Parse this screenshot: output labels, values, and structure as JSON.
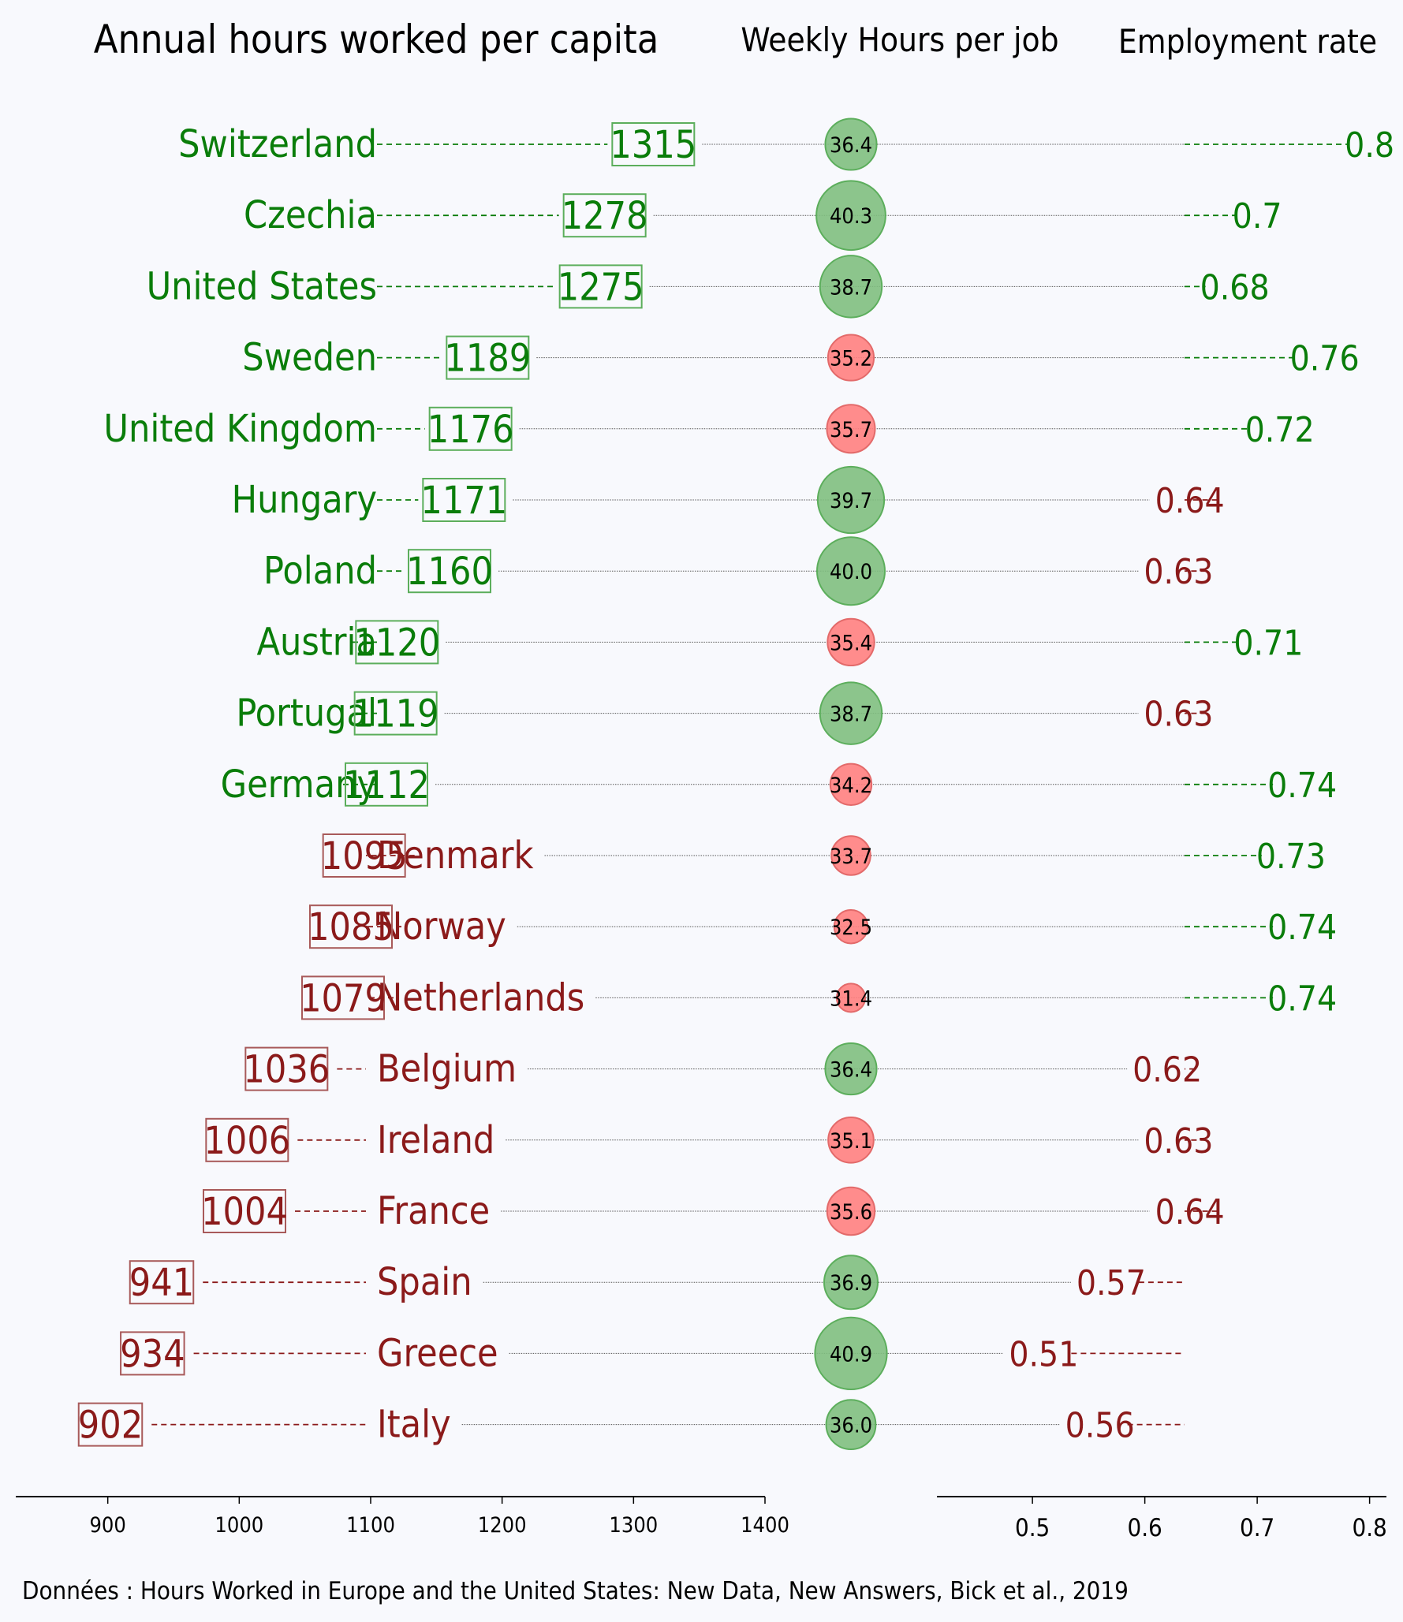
{
  "chart_data": {
    "type": "table",
    "title": "Annual hours worked per capita",
    "weekly_title": "Weekly Hours per job",
    "employment_title": "Employment rate",
    "source": "Données : Hours Worked in Europe and the United States: New Data, New Answers, Bick et al., 2019",
    "hours_threshold": 1100,
    "weekly_threshold": 36.0,
    "employment_threshold": 0.67,
    "x_left_ticks": [
      "900",
      "1000",
      "1100",
      "1200",
      "1300",
      "1400"
    ],
    "x_left_range": [
      830,
      1400
    ],
    "x_right_ticks": [
      "0.5",
      "0.6",
      "0.7",
      "0.8"
    ],
    "x_right_range": [
      0.415,
      0.815
    ],
    "colors": {
      "above": "#0a7d0a",
      "below": "#8b1a1a",
      "green_fill": "#7fbf7f",
      "red_fill": "#ff7f7f",
      "background": "#f8f9fd"
    },
    "rows": [
      {
        "country": "Switzerland",
        "hours": 1315,
        "hours_label": "1315",
        "weekly": 36.4,
        "weekly_label": "36.4",
        "employment": 0.8,
        "employment_label": "0.8"
      },
      {
        "country": "Czechia",
        "hours": 1278,
        "hours_label": "1278",
        "weekly": 40.3,
        "weekly_label": "40.3",
        "employment": 0.7,
        "employment_label": "0.7"
      },
      {
        "country": "United States",
        "hours": 1275,
        "hours_label": "1275",
        "weekly": 38.7,
        "weekly_label": "38.7",
        "employment": 0.68,
        "employment_label": "0.68"
      },
      {
        "country": "Sweden",
        "hours": 1189,
        "hours_label": "1189",
        "weekly": 35.2,
        "weekly_label": "35.2",
        "employment": 0.76,
        "employment_label": "0.76"
      },
      {
        "country": "United Kingdom",
        "hours": 1176,
        "hours_label": "1176",
        "weekly": 35.7,
        "weekly_label": "35.7",
        "employment": 0.72,
        "employment_label": "0.72"
      },
      {
        "country": "Hungary",
        "hours": 1171,
        "hours_label": "1171",
        "weekly": 39.7,
        "weekly_label": "39.7",
        "employment": 0.64,
        "employment_label": "0.64"
      },
      {
        "country": "Poland",
        "hours": 1160,
        "hours_label": "1160",
        "weekly": 40.0,
        "weekly_label": "40.0",
        "employment": 0.63,
        "employment_label": "0.63"
      },
      {
        "country": "Austria",
        "hours": 1120,
        "hours_label": "1120",
        "weekly": 35.4,
        "weekly_label": "35.4",
        "employment": 0.71,
        "employment_label": "0.71"
      },
      {
        "country": "Portugal",
        "hours": 1119,
        "hours_label": "1119",
        "weekly": 38.7,
        "weekly_label": "38.7",
        "employment": 0.63,
        "employment_label": "0.63"
      },
      {
        "country": "Germany",
        "hours": 1112,
        "hours_label": "1112",
        "weekly": 34.2,
        "weekly_label": "34.2",
        "employment": 0.74,
        "employment_label": "0.74"
      },
      {
        "country": "Denmark",
        "hours": 1095,
        "hours_label": "1095",
        "weekly": 33.7,
        "weekly_label": "33.7",
        "employment": 0.73,
        "employment_label": "0.73"
      },
      {
        "country": "Norway",
        "hours": 1085,
        "hours_label": "1085",
        "weekly": 32.5,
        "weekly_label": "32.5",
        "employment": 0.74,
        "employment_label": "0.74"
      },
      {
        "country": "Netherlands",
        "hours": 1079,
        "hours_label": "1079",
        "weekly": 31.4,
        "weekly_label": "31.4",
        "employment": 0.74,
        "employment_label": "0.74"
      },
      {
        "country": "Belgium",
        "hours": 1036,
        "hours_label": "1036",
        "weekly": 36.4,
        "weekly_label": "36.4",
        "employment": 0.62,
        "employment_label": "0.62"
      },
      {
        "country": "Ireland",
        "hours": 1006,
        "hours_label": "1006",
        "weekly": 35.1,
        "weekly_label": "35.1",
        "employment": 0.63,
        "employment_label": "0.63"
      },
      {
        "country": "France",
        "hours": 1004,
        "hours_label": "1004",
        "weekly": 35.6,
        "weekly_label": "35.6",
        "employment": 0.64,
        "employment_label": "0.64"
      },
      {
        "country": "Spain",
        "hours": 941,
        "hours_label": "941",
        "weekly": 36.9,
        "weekly_label": "36.9",
        "employment": 0.57,
        "employment_label": "0.57"
      },
      {
        "country": "Greece",
        "hours": 934,
        "hours_label": "934",
        "weekly": 40.9,
        "weekly_label": "40.9",
        "employment": 0.51,
        "employment_label": "0.51"
      },
      {
        "country": "Italy",
        "hours": 902,
        "hours_label": "902",
        "weekly": 36.0,
        "weekly_label": "36.0",
        "employment": 0.56,
        "employment_label": "0.56"
      }
    ]
  }
}
